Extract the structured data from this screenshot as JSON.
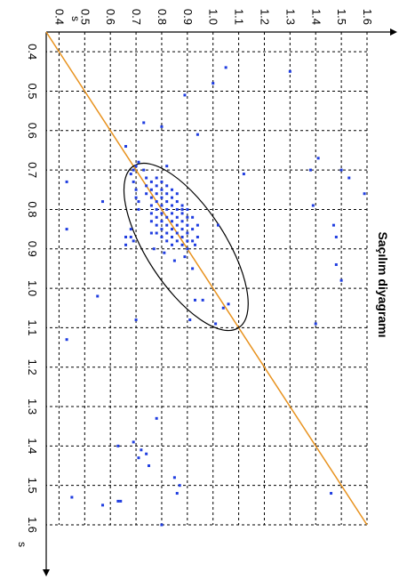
{
  "chart_data": {
    "type": "scatter",
    "title": "Saçılım diyagramı",
    "xlabel": "s",
    "ylabel": "s",
    "xlim": [
      0.35,
      1.6
    ],
    "ylim": [
      0.35,
      1.6
    ],
    "x_ticks": [
      "0.4",
      "0.5",
      "0.6",
      "0.7",
      "0.8",
      "0.9",
      "1.0",
      "1.1",
      "1.2",
      "1.3",
      "1.4",
      "1.5",
      "1.6"
    ],
    "y_ticks": [
      "0.4",
      "0.5",
      "0.6",
      "0.7",
      "0.8",
      "0.9",
      "1.0",
      "1.1",
      "1.2",
      "1.3",
      "1.4",
      "1.5",
      "1.6"
    ],
    "grid": true,
    "colors": {
      "points": "#1f3de0",
      "reference_line": "#e8921e",
      "ellipse": "#000000",
      "grid": "#000000"
    },
    "reference_line": {
      "x": [
        0.35,
        1.6
      ],
      "y": [
        0.35,
        1.6
      ]
    },
    "ellipse": {
      "center": [
        0.86,
        0.82
      ],
      "axis_endpoints": [
        [
          0.69,
          0.69
        ],
        [
          1.1,
          1.1
        ]
      ],
      "minor_half_width": 0.1
    },
    "points": [
      [
        0.75,
        0.7
      ],
      [
        0.77,
        0.7
      ],
      [
        0.78,
        0.71
      ],
      [
        0.8,
        0.71
      ],
      [
        0.7,
        0.73
      ],
      [
        0.72,
        0.74
      ],
      [
        0.74,
        0.74
      ],
      [
        0.76,
        0.74
      ],
      [
        0.73,
        0.76
      ],
      [
        0.75,
        0.76
      ],
      [
        0.77,
        0.76
      ],
      [
        0.79,
        0.76
      ],
      [
        0.81,
        0.76
      ],
      [
        0.83,
        0.76
      ],
      [
        0.72,
        0.78
      ],
      [
        0.74,
        0.78
      ],
      [
        0.76,
        0.78
      ],
      [
        0.78,
        0.78
      ],
      [
        0.8,
        0.78
      ],
      [
        0.82,
        0.78
      ],
      [
        0.84,
        0.78
      ],
      [
        0.86,
        0.78
      ],
      [
        0.73,
        0.8
      ],
      [
        0.75,
        0.8
      ],
      [
        0.77,
        0.8
      ],
      [
        0.79,
        0.8
      ],
      [
        0.81,
        0.8
      ],
      [
        0.83,
        0.8
      ],
      [
        0.85,
        0.8
      ],
      [
        0.87,
        0.8
      ],
      [
        0.74,
        0.82
      ],
      [
        0.76,
        0.82
      ],
      [
        0.78,
        0.82
      ],
      [
        0.8,
        0.82
      ],
      [
        0.82,
        0.82
      ],
      [
        0.84,
        0.82
      ],
      [
        0.86,
        0.82
      ],
      [
        0.88,
        0.82
      ],
      [
        0.75,
        0.84
      ],
      [
        0.77,
        0.84
      ],
      [
        0.79,
        0.84
      ],
      [
        0.81,
        0.84
      ],
      [
        0.83,
        0.84
      ],
      [
        0.85,
        0.84
      ],
      [
        0.87,
        0.84
      ],
      [
        0.89,
        0.84
      ],
      [
        0.76,
        0.86
      ],
      [
        0.78,
        0.86
      ],
      [
        0.8,
        0.86
      ],
      [
        0.82,
        0.86
      ],
      [
        0.84,
        0.86
      ],
      [
        0.86,
        0.86
      ],
      [
        0.88,
        0.86
      ],
      [
        0.79,
        0.88
      ],
      [
        0.81,
        0.88
      ],
      [
        0.83,
        0.88
      ],
      [
        0.85,
        0.88
      ],
      [
        0.87,
        0.88
      ],
      [
        0.89,
        0.88
      ],
      [
        0.8,
        0.9
      ],
      [
        0.82,
        0.9
      ],
      [
        0.84,
        0.9
      ],
      [
        0.86,
        0.9
      ],
      [
        0.88,
        0.9
      ],
      [
        0.9,
        0.9
      ],
      [
        0.82,
        0.92
      ],
      [
        0.85,
        0.92
      ],
      [
        0.88,
        0.92
      ],
      [
        0.84,
        0.94
      ],
      [
        0.87,
        0.94
      ],
      [
        0.89,
        0.93
      ],
      [
        0.69,
        0.7
      ],
      [
        0.71,
        0.68
      ],
      [
        0.73,
        0.69
      ],
      [
        0.68,
        0.71
      ],
      [
        0.7,
        0.69
      ],
      [
        0.85,
        0.68
      ],
      [
        0.87,
        0.68
      ],
      [
        0.88,
        0.69
      ],
      [
        0.9,
        0.77
      ],
      [
        0.91,
        0.81
      ],
      [
        0.93,
        0.85
      ],
      [
        0.92,
        0.89
      ],
      [
        0.95,
        0.92
      ],
      [
        0.87,
        0.66
      ],
      [
        0.89,
        0.66
      ],
      [
        1.03,
        0.93
      ],
      [
        1.03,
        0.96
      ],
      [
        1.04,
        1.06
      ],
      [
        1.09,
        1.01
      ],
      [
        1.05,
        1.04
      ],
      [
        1.08,
        0.91
      ],
      [
        1.08,
        0.7
      ],
      [
        1.33,
        0.78
      ],
      [
        1.39,
        0.69
      ],
      [
        1.41,
        0.72
      ],
      [
        1.43,
        0.71
      ],
      [
        1.4,
        0.63
      ],
      [
        1.45,
        0.75
      ],
      [
        1.42,
        0.74
      ],
      [
        1.48,
        0.85
      ],
      [
        1.5,
        0.87
      ],
      [
        1.52,
        0.86
      ],
      [
        1.54,
        0.63
      ],
      [
        1.55,
        0.57
      ],
      [
        1.6,
        0.8
      ],
      [
        1.54,
        0.64
      ],
      [
        1.53,
        0.45
      ],
      [
        1.13,
        0.43
      ],
      [
        0.85,
        0.43
      ],
      [
        0.73,
        0.43
      ],
      [
        1.02,
        0.55
      ],
      [
        0.78,
        0.57
      ],
      [
        0.64,
        0.66
      ],
      [
        0.69,
        0.82
      ],
      [
        0.59,
        0.8
      ],
      [
        0.61,
        0.94
      ],
      [
        0.51,
        0.89
      ],
      [
        0.58,
        0.73
      ],
      [
        0.48,
        1.0
      ],
      [
        0.44,
        1.05
      ],
      [
        0.45,
        1.3
      ],
      [
        0.67,
        1.41
      ],
      [
        0.7,
        1.38
      ],
      [
        0.72,
        1.53
      ],
      [
        0.7,
        1.5
      ],
      [
        0.76,
        1.59
      ],
      [
        0.79,
        1.39
      ],
      [
        0.84,
        1.47
      ],
      [
        0.87,
        1.48
      ],
      [
        0.94,
        1.48
      ],
      [
        0.98,
        1.5
      ],
      [
        1.09,
        1.4
      ],
      [
        1.52,
        1.46
      ],
      [
        0.71,
        1.12
      ],
      [
        0.84,
        1.02
      ],
      [
        0.86,
        0.76
      ],
      [
        0.8,
        0.88
      ]
    ]
  }
}
